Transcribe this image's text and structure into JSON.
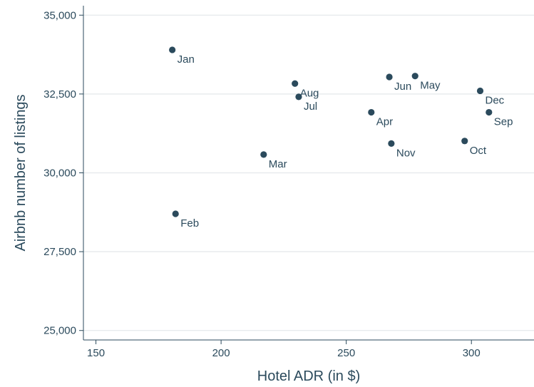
{
  "chart_data": {
    "type": "scatter",
    "title": "",
    "xlabel": "Hotel ADR (in $)",
    "ylabel": "Airbnb number of listings",
    "xlim": [
      145,
      325
    ],
    "ylim": [
      24700,
      35300
    ],
    "xticks": [
      150,
      200,
      250,
      300
    ],
    "xtick_labels": [
      "150",
      "200",
      "250",
      "300"
    ],
    "yticks": [
      25000,
      27500,
      30000,
      32500,
      35000
    ],
    "ytick_labels": [
      "25,000",
      "27,500",
      "30,000",
      "32,500",
      "35,000"
    ],
    "grid": "horizontal",
    "points": [
      {
        "label": "Jan",
        "x": 180.5,
        "y": 33900
      },
      {
        "label": "Feb",
        "x": 181.8,
        "y": 28700
      },
      {
        "label": "Mar",
        "x": 217.0,
        "y": 30580
      },
      {
        "label": "Apr",
        "x": 260.0,
        "y": 31920
      },
      {
        "label": "May",
        "x": 277.5,
        "y": 33070
      },
      {
        "label": "Jun",
        "x": 267.2,
        "y": 33040
      },
      {
        "label": "Jul",
        "x": 231.0,
        "y": 32410
      },
      {
        "label": "Aug",
        "x": 229.5,
        "y": 32830
      },
      {
        "label": "Sep",
        "x": 307.0,
        "y": 31920
      },
      {
        "label": "Oct",
        "x": 297.3,
        "y": 31010
      },
      {
        "label": "Nov",
        "x": 268.0,
        "y": 30930
      },
      {
        "label": "Dec",
        "x": 303.5,
        "y": 32600
      }
    ],
    "colors": {
      "marker": "#2b4a5c",
      "text": "#2b4a5c",
      "grid": "#e8ebee"
    }
  }
}
